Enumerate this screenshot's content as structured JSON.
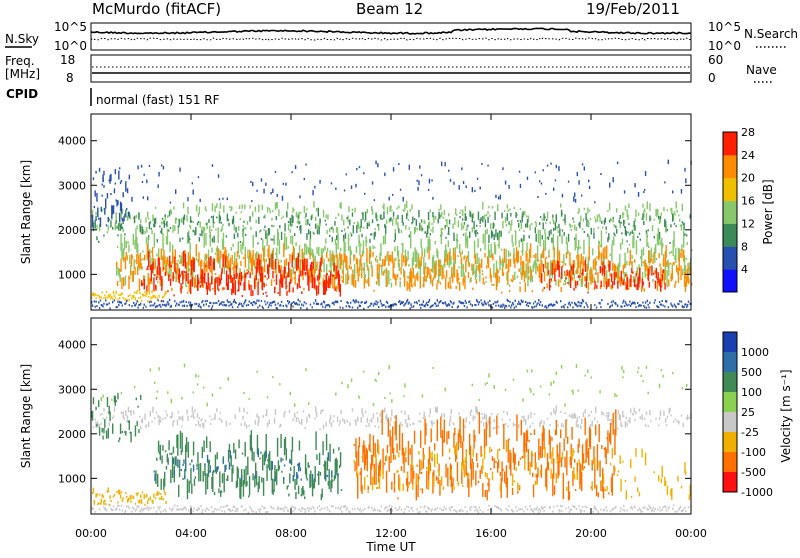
{
  "header": {
    "station": "McMurdo (fitACF)",
    "beam": "Beam 12",
    "date": "19/Feb/2011"
  },
  "side_labels": {
    "nsky": "N.Sky",
    "nsearch": "N.Search",
    "freq_line1": "Freq.",
    "freq_line2": "[MHz]",
    "nave": "Nave",
    "cpid": "CPID",
    "nsky_top": "10^5",
    "nsky_bottom": "10^0",
    "nsearch_top": "10^5",
    "nsearch_bottom": "10^0",
    "freq_top": "18",
    "freq_bottom": "8",
    "nave_top": "60",
    "nave_bottom": "0"
  },
  "cpid_text": "normal (fast) 151 RF",
  "chart_data": [
    {
      "type": "heatmap",
      "panel": "power",
      "ylabel": "Slant Range [km]",
      "ylim": [
        200,
        4600
      ],
      "yticks": [
        "1000",
        "2000",
        "3000",
        "4000"
      ],
      "colorbar": {
        "label": "Power [dB]",
        "ticks": [
          "4",
          "8",
          "12",
          "16",
          "20",
          "24",
          "28"
        ],
        "colors": [
          "#1010ff",
          "#2850b0",
          "#3c8a5a",
          "#86c86a",
          "#f0c000",
          "#ff8c00",
          "#ff2000"
        ]
      },
      "bands": [
        {
          "range_km": [
            300,
            600
          ],
          "level": "low-mixed"
        },
        {
          "range_km": [
            500,
            1700
          ],
          "level": "high-red-orange"
        },
        {
          "range_km": [
            1800,
            2500
          ],
          "level": "medium-green-yellow"
        },
        {
          "range_km": [
            2500,
            3500
          ],
          "level": "low-blue"
        }
      ]
    },
    {
      "type": "heatmap",
      "panel": "velocity",
      "ylabel": "Slant Range [km]",
      "xlabel": "Time UT",
      "ylim": [
        200,
        4600
      ],
      "yticks": [
        "1000",
        "2000",
        "3000",
        "4000"
      ],
      "xticks": [
        "00:00",
        "04:00",
        "08:00",
        "12:00",
        "16:00",
        "20:00",
        "00:00"
      ],
      "colorbar": {
        "label": "Velocity [m s⁻¹]",
        "ticks": [
          "1000",
          "500",
          "100",
          "25",
          "-25",
          "-100",
          "-500",
          "-1000"
        ],
        "colors": [
          "#1a3fb0",
          "#2f6fa8",
          "#3f8a55",
          "#8cd050",
          "#c8c8c8",
          "#f0b000",
          "#ff7000",
          "#ff1010"
        ]
      },
      "bands": [
        {
          "range_km": [
            400,
            1700
          ],
          "time_h": [
            3,
            10
          ],
          "level": "green-toward"
        },
        {
          "range_km": [
            400,
            2200
          ],
          "time_h": [
            11,
            21
          ],
          "level": "orange-away"
        },
        {
          "range_km": [
            2000,
            2600
          ],
          "time_h": [
            0,
            24
          ],
          "level": "grey-low"
        }
      ]
    }
  ]
}
